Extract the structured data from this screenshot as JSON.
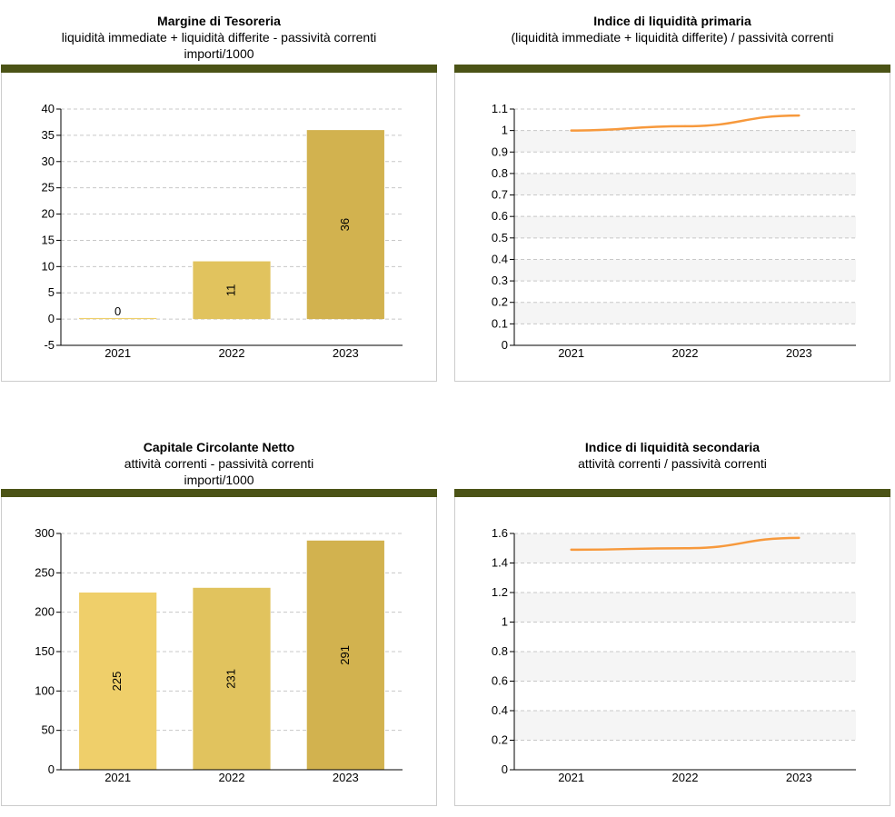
{
  "chart_data": [
    {
      "type": "bar",
      "title": "Margine di Tesoreria",
      "subtitle": "liquidità immediate + liquidità differite - passività correnti",
      "subtitle2": "importi/1000",
      "categories": [
        "2021",
        "2022",
        "2023"
      ],
      "values": [
        0,
        11,
        36
      ],
      "value_labels": [
        "0",
        "11",
        "36"
      ],
      "ylim": [
        -5,
        40
      ],
      "yticks": [
        -5,
        0,
        5,
        10,
        15,
        20,
        25,
        30,
        35,
        40
      ],
      "ytick_labels": [
        "-5",
        "0",
        "5",
        "10",
        "15",
        "20",
        "25",
        "30",
        "35",
        "40"
      ],
      "colors": [
        "#efcf6a",
        "#e1c35e",
        "#d2b24f"
      ],
      "xlabel": "",
      "ylabel": ""
    },
    {
      "type": "line",
      "title": "Indice di liquidità primaria",
      "subtitle": "(liquidità immediate + liquidità differite) / passività correnti",
      "subtitle2": "",
      "categories": [
        "2021",
        "2022",
        "2023"
      ],
      "values": [
        1.0,
        1.02,
        1.07
      ],
      "ylim": [
        0,
        1.1
      ],
      "yticks": [
        0,
        0.1,
        0.2,
        0.3,
        0.4,
        0.5,
        0.6,
        0.7,
        0.8,
        0.9,
        1,
        1.1
      ],
      "ytick_labels": [
        "0",
        "0.1",
        "0.2",
        "0.3",
        "0.4",
        "0.5",
        "0.6",
        "0.7",
        "0.8",
        "0.9",
        "1",
        "1.1"
      ],
      "line_color": "#f7993c",
      "xlabel": "",
      "ylabel": ""
    },
    {
      "type": "bar",
      "title": "Capitale Circolante Netto",
      "subtitle": "attività correnti - passività correnti",
      "subtitle2": "importi/1000",
      "categories": [
        "2021",
        "2022",
        "2023"
      ],
      "values": [
        225,
        231,
        291
      ],
      "value_labels": [
        "225",
        "231",
        "291"
      ],
      "ylim": [
        0,
        300
      ],
      "yticks": [
        0,
        50,
        100,
        150,
        200,
        250,
        300
      ],
      "ytick_labels": [
        "0",
        "50",
        "100",
        "150",
        "200",
        "250",
        "300"
      ],
      "colors": [
        "#efcf6a",
        "#e1c35e",
        "#d2b24f"
      ],
      "xlabel": "",
      "ylabel": ""
    },
    {
      "type": "line",
      "title": "Indice di liquidità secondaria",
      "subtitle": "attività correnti / passività correnti",
      "subtitle2": "",
      "categories": [
        "2021",
        "2022",
        "2023"
      ],
      "values": [
        1.49,
        1.5,
        1.57
      ],
      "ylim": [
        0,
        1.6
      ],
      "yticks": [
        0,
        0.2,
        0.4,
        0.6,
        0.8,
        1,
        1.2,
        1.4,
        1.6
      ],
      "ytick_labels": [
        "0",
        "0.2",
        "0.4",
        "0.6",
        "0.8",
        "1",
        "1.2",
        "1.4",
        "1.6"
      ],
      "line_color": "#f7993c",
      "xlabel": "",
      "ylabel": ""
    }
  ]
}
